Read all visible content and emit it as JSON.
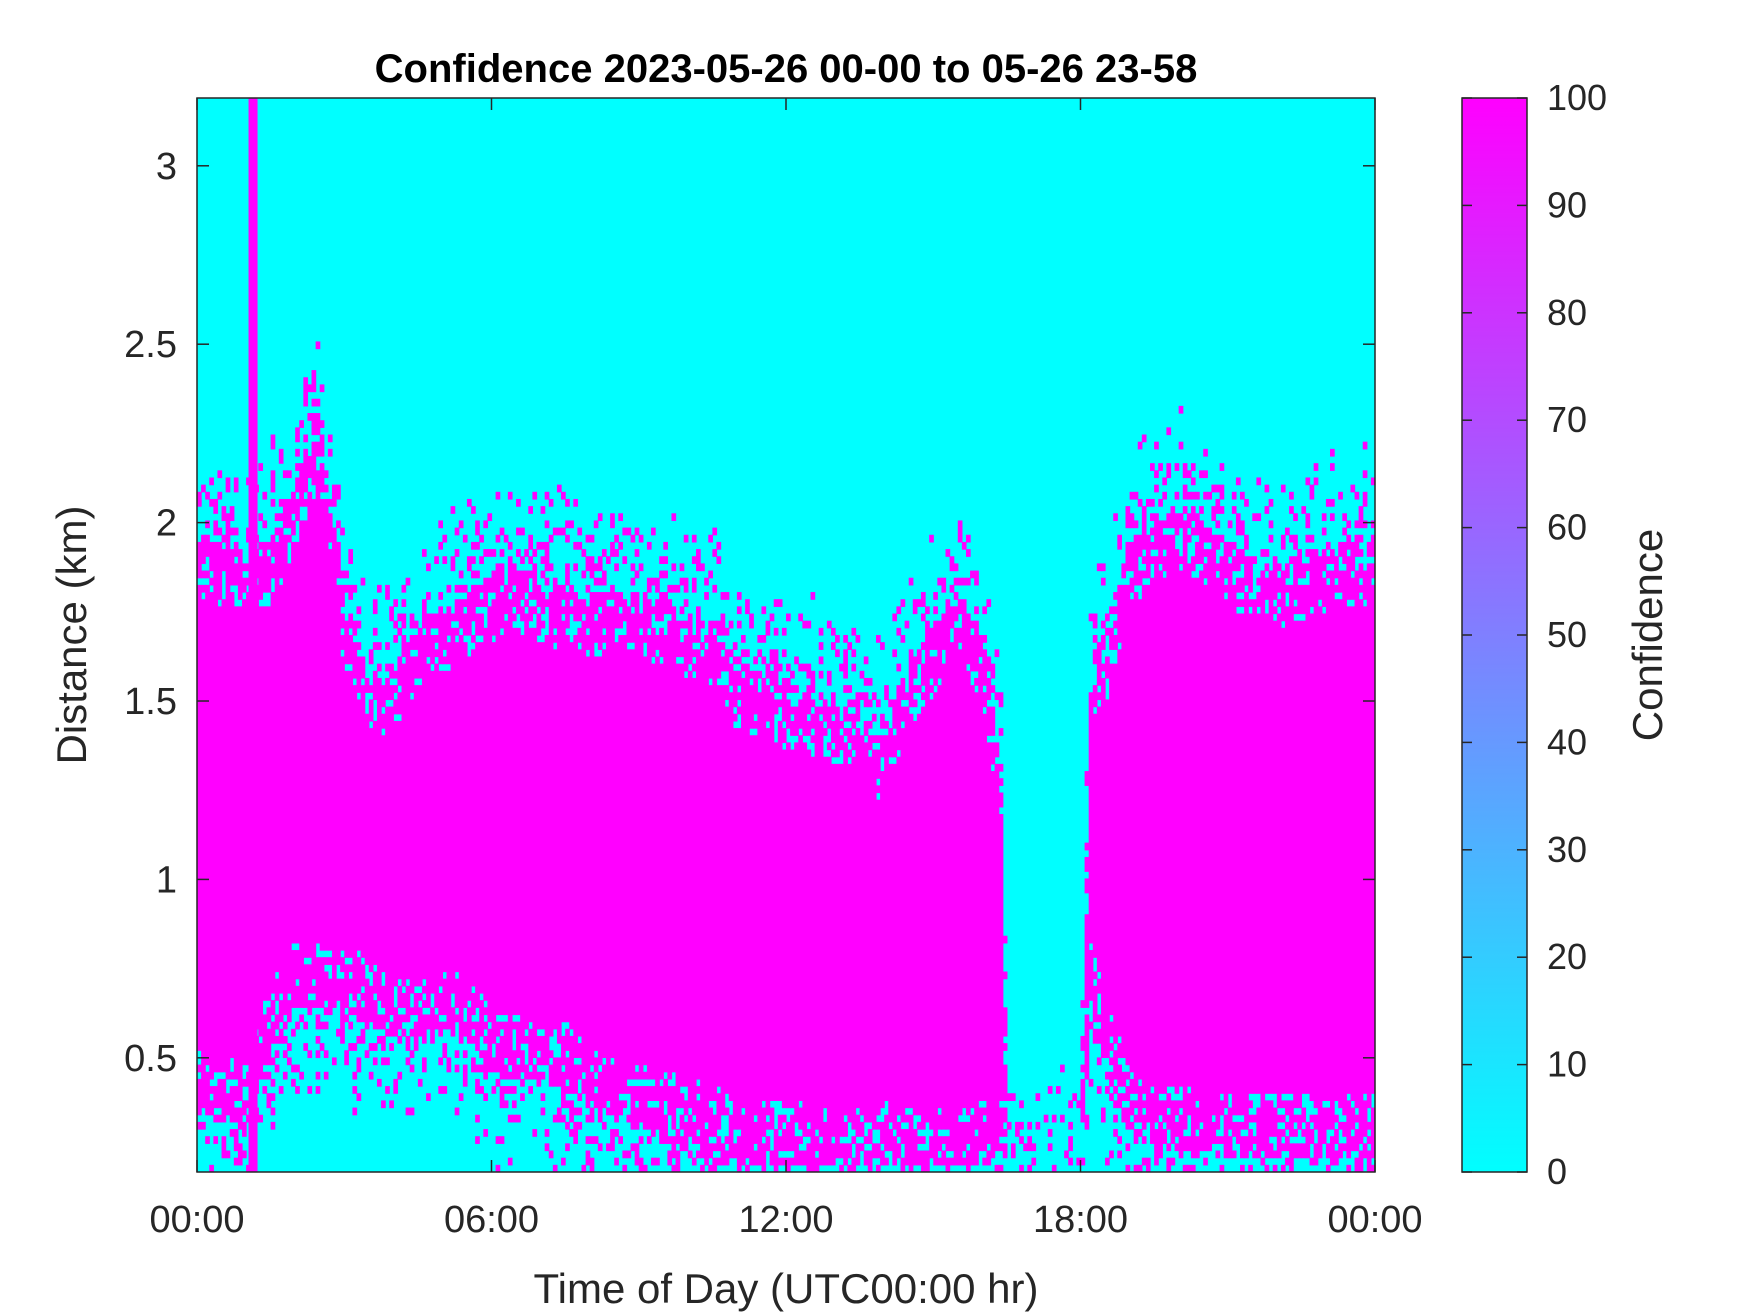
{
  "chart_data": {
    "type": "heatmap",
    "title": "Confidence 2023-05-26 00-00 to 05-26 23-58",
    "xlabel": "Time of Day (UTC00:00 hr)",
    "ylabel": "Distance (km)",
    "x_tick_labels": [
      "00:00",
      "06:00",
      "12:00",
      "18:00",
      "00:00"
    ],
    "x_tick_hours": [
      0,
      6,
      12,
      18,
      24
    ],
    "xlim_hours": [
      0,
      24
    ],
    "y_ticks": [
      0.5,
      1,
      1.5,
      2,
      2.5,
      3
    ],
    "y_tick_labels": [
      "0.5",
      "1",
      "1.5",
      "2",
      "2.5",
      "3"
    ],
    "ylim_km": [
      0.18,
      3.19
    ],
    "colorbar": {
      "label": "Confidence",
      "ticks": [
        0,
        10,
        20,
        30,
        40,
        50,
        60,
        70,
        80,
        90,
        100
      ],
      "tick_labels": [
        "0",
        "10",
        "20",
        "30",
        "40",
        "50",
        "60",
        "70",
        "80",
        "90",
        "100"
      ],
      "range": [
        0,
        100
      ],
      "colormap": "cool",
      "color_min": "#00ffff",
      "color_max": "#ff00ff"
    },
    "values_present": [
      0,
      100
    ],
    "high_confidence_layer": {
      "description_units": "hour -> [bottom_km, top_km] of confidence=100 region",
      "hours": [
        0,
        0.5,
        1,
        1.5,
        2,
        2.5,
        3,
        3.5,
        4,
        4.5,
        5,
        5.5,
        6,
        6.5,
        7,
        7.5,
        8,
        8.5,
        9,
        9.5,
        10,
        10.5,
        11,
        11.5,
        12,
        12.5,
        13,
        13.5,
        14,
        14.5,
        15,
        15.5,
        16,
        16.2,
        16.4,
        16.5,
        17,
        17.5,
        18,
        18.2,
        18.4,
        18.6,
        19,
        19.5,
        20,
        20.5,
        21,
        21.5,
        22,
        22.5,
        23,
        23.5,
        24
      ],
      "top_km": [
        1.95,
        1.95,
        1.9,
        1.95,
        2.1,
        2.3,
        1.75,
        1.55,
        1.6,
        1.7,
        1.75,
        1.8,
        1.85,
        1.88,
        1.85,
        1.82,
        1.8,
        1.82,
        1.78,
        1.78,
        1.75,
        1.72,
        1.6,
        1.58,
        1.55,
        1.52,
        1.5,
        1.45,
        1.4,
        1.6,
        1.7,
        1.8,
        1.68,
        1.5,
        1.3,
        0.2,
        0.2,
        0.2,
        0.2,
        1.55,
        1.68,
        1.7,
        1.95,
        2.0,
        2.05,
        2.0,
        1.95,
        1.9,
        1.88,
        1.9,
        1.92,
        1.95,
        1.95
      ],
      "bottom_km": [
        0.35,
        0.32,
        0.3,
        0.55,
        0.65,
        0.65,
        0.65,
        0.6,
        0.55,
        0.55,
        0.58,
        0.55,
        0.45,
        0.45,
        0.42,
        0.42,
        0.35,
        0.32,
        0.3,
        0.28,
        0.26,
        0.24,
        0.22,
        0.2,
        0.2,
        0.2,
        0.2,
        0.2,
        0.2,
        0.2,
        0.2,
        0.2,
        0.2,
        0.2,
        0.2,
        0.2,
        0.2,
        0.2,
        0.2,
        0.65,
        0.55,
        0.45,
        0.3,
        0.25,
        0.25,
        0.24,
        0.23,
        0.22,
        0.22,
        0.22,
        0.22,
        0.22,
        0.22
      ]
    }
  }
}
